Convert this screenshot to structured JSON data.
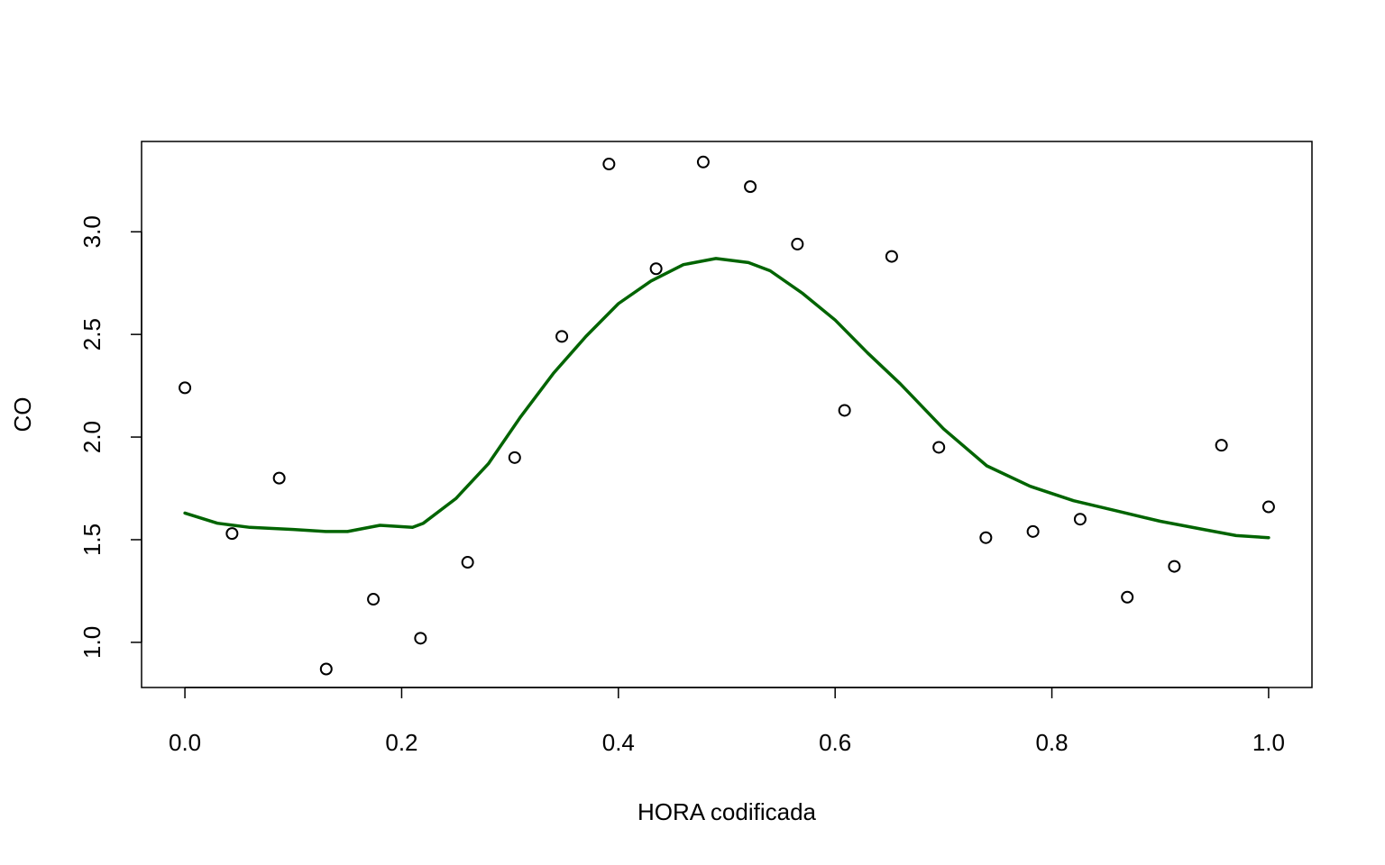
{
  "chart_data": {
    "type": "scatter",
    "title": "",
    "xlabel": "HORA codificada",
    "ylabel": "CO",
    "xlim": [
      -0.04,
      1.04
    ],
    "ylim": [
      0.78,
      3.44
    ],
    "x_ticks": [
      0.0,
      0.2,
      0.4,
      0.6,
      0.8,
      1.0
    ],
    "x_tick_labels": [
      "0.0",
      "0.2",
      "0.4",
      "0.6",
      "0.8",
      "1.0"
    ],
    "y_ticks": [
      1.0,
      1.5,
      2.0,
      2.5,
      3.0
    ],
    "y_tick_labels": [
      "1.0",
      "1.5",
      "2.0",
      "2.5",
      "3.0"
    ],
    "grid": false,
    "point_style": "open-circle",
    "point_color": "#000000",
    "smooth_color": "#006400",
    "series": [
      {
        "type": "scatter",
        "x": [
          0.0,
          0.0435,
          0.087,
          0.1304,
          0.1739,
          0.2174,
          0.2609,
          0.3043,
          0.3478,
          0.3913,
          0.4348,
          0.4783,
          0.5217,
          0.5652,
          0.6087,
          0.6522,
          0.6957,
          0.7391,
          0.7826,
          0.8261,
          0.8696,
          0.913,
          0.9565,
          1.0
        ],
        "y": [
          2.24,
          1.53,
          1.8,
          0.87,
          1.21,
          1.02,
          1.39,
          1.9,
          2.49,
          3.33,
          2.82,
          3.34,
          3.22,
          2.94,
          2.13,
          2.88,
          1.95,
          1.51,
          1.54,
          1.6,
          1.22,
          1.37,
          1.96,
          1.66
        ]
      },
      {
        "type": "line",
        "x": [
          0.0,
          0.03,
          0.06,
          0.1,
          0.13,
          0.15,
          0.18,
          0.21,
          0.22,
          0.25,
          0.28,
          0.31,
          0.34,
          0.37,
          0.4,
          0.43,
          0.46,
          0.49,
          0.52,
          0.54,
          0.57,
          0.6,
          0.63,
          0.66,
          0.7,
          0.74,
          0.78,
          0.82,
          0.86,
          0.9,
          0.94,
          0.97,
          1.0
        ],
        "y": [
          1.63,
          1.58,
          1.56,
          1.55,
          1.54,
          1.54,
          1.57,
          1.56,
          1.58,
          1.7,
          1.87,
          2.1,
          2.31,
          2.49,
          2.65,
          2.76,
          2.84,
          2.87,
          2.85,
          2.81,
          2.7,
          2.57,
          2.41,
          2.26,
          2.04,
          1.86,
          1.76,
          1.69,
          1.64,
          1.59,
          1.55,
          1.52,
          1.51
        ]
      }
    ]
  }
}
